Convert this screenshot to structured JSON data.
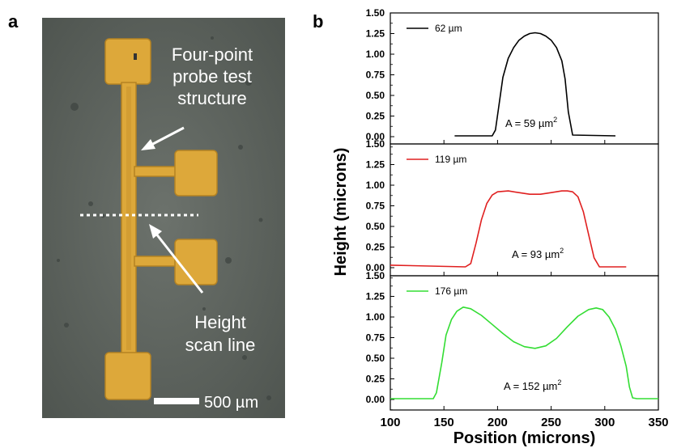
{
  "figure": {
    "panel_a_label": "a",
    "panel_b_label": "b"
  },
  "micrograph": {
    "label_structure_line1": "Four-point",
    "label_structure_line2": "probe test",
    "label_structure_line3": "structure",
    "label_scan_line1": "Height",
    "label_scan_line2": "scan line",
    "scale_bar_label": "500 µm",
    "colors": {
      "background": "#5d635f",
      "gold": "#dda83a",
      "gold_edge": "#b58323"
    }
  },
  "chart_data": {
    "type": "line",
    "xlabel": "Position (microns)",
    "ylabel": "Height (microns)",
    "xlim": [
      100,
      350
    ],
    "xticks": [
      "100",
      "150",
      "200",
      "250",
      "300",
      "350"
    ],
    "ylim": [
      0,
      1.5
    ],
    "yticks": [
      "0.00",
      "0.25",
      "0.50",
      "0.75",
      "1.00",
      "1.25",
      "1.50"
    ],
    "grid": false,
    "panels": [
      {
        "legend": "62 µm",
        "color": "#000000",
        "annotation_prefix": "A = 59 µm",
        "annotation_sup": "2",
        "x": [
          160,
          195,
          198,
          201,
          205,
          210,
          215,
          220,
          225,
          230,
          235,
          240,
          245,
          250,
          255,
          260,
          263,
          266,
          270,
          310
        ],
        "y": [
          0.01,
          0.01,
          0.08,
          0.35,
          0.72,
          0.95,
          1.08,
          1.17,
          1.22,
          1.25,
          1.26,
          1.25,
          1.22,
          1.17,
          1.08,
          0.92,
          0.7,
          0.3,
          0.02,
          0.01
        ]
      },
      {
        "legend": "119 µm",
        "color": "#e02020",
        "annotation_prefix": "A = 93 µm",
        "annotation_sup": "2",
        "x": [
          100,
          170,
          175,
          180,
          185,
          190,
          195,
          200,
          210,
          220,
          230,
          240,
          250,
          260,
          265,
          270,
          275,
          280,
          285,
          290,
          295,
          320
        ],
        "y": [
          0.03,
          0.01,
          0.05,
          0.3,
          0.58,
          0.78,
          0.88,
          0.92,
          0.93,
          0.91,
          0.89,
          0.89,
          0.91,
          0.93,
          0.93,
          0.92,
          0.86,
          0.68,
          0.4,
          0.12,
          0.01,
          0.01
        ]
      },
      {
        "legend": "176 µm",
        "color": "#33dd33",
        "annotation_prefix": "A = 152 µm",
        "annotation_sup": "2",
        "x": [
          100,
          140,
          143,
          148,
          152,
          157,
          162,
          168,
          175,
          185,
          195,
          205,
          215,
          225,
          235,
          245,
          255,
          265,
          275,
          285,
          292,
          298,
          304,
          310,
          315,
          320,
          323,
          326,
          330,
          350
        ],
        "y": [
          0.01,
          0.01,
          0.08,
          0.45,
          0.78,
          0.97,
          1.07,
          1.12,
          1.1,
          1.02,
          0.91,
          0.8,
          0.7,
          0.64,
          0.62,
          0.65,
          0.74,
          0.88,
          1.01,
          1.09,
          1.11,
          1.09,
          1.0,
          0.85,
          0.65,
          0.4,
          0.15,
          0.02,
          0.01,
          0.01
        ]
      }
    ]
  }
}
